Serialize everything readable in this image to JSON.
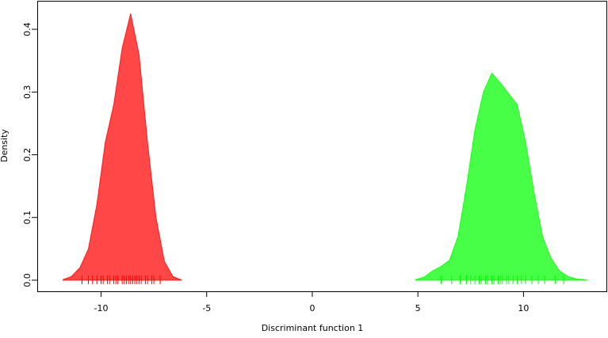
{
  "chart_data": {
    "type": "density",
    "x_label": "Discriminant function 1",
    "y_label": "Density",
    "xlim": [
      -13.02,
      14.0
    ],
    "ylim": [
      -0.0177,
      0.4467
    ],
    "xticks": [
      -10,
      -5,
      0,
      5,
      10
    ],
    "yticks": [
      {
        "value": 0,
        "label": "0.0"
      },
      0.1,
      0.2,
      0.3,
      0.4
    ],
    "series": [
      {
        "color": "#ff0000",
        "x": [
          -11.8,
          -11.4,
          -11.0,
          -10.6,
          -10.2,
          -9.8,
          -9.4,
          -9.0,
          -8.6,
          -8.2,
          -7.8,
          -7.4,
          -7.0,
          -6.6,
          -6.2
        ],
        "values": [
          0.001,
          0.006,
          0.02,
          0.05,
          0.12,
          0.22,
          0.28,
          0.37,
          0.425,
          0.36,
          0.22,
          0.1,
          0.03,
          0.006,
          0.0005
        ],
        "rug": [
          -10.9,
          -10.6,
          -10.4,
          -10.2,
          -10.0,
          -9.9,
          -9.7,
          -9.6,
          -9.4,
          -9.3,
          -9.2,
          -9.0,
          -8.9,
          -8.8,
          -8.7,
          -8.6,
          -8.5,
          -8.4,
          -8.3,
          -8.2,
          -8.1,
          -7.9,
          -7.8,
          -7.6,
          -7.5,
          -7.2
        ]
      },
      {
        "color": "#00ff00",
        "x": [
          4.9,
          5.3,
          5.7,
          6.1,
          6.5,
          6.9,
          7.3,
          7.7,
          8.1,
          8.5,
          8.9,
          9.3,
          9.7,
          10.1,
          10.5,
          10.9,
          11.3,
          11.7,
          12.1,
          12.5,
          13.0
        ],
        "values": [
          0.001,
          0.005,
          0.015,
          0.022,
          0.032,
          0.07,
          0.15,
          0.24,
          0.3,
          0.33,
          0.315,
          0.297,
          0.28,
          0.22,
          0.14,
          0.07,
          0.035,
          0.015,
          0.006,
          0.002,
          0.0005
        ],
        "rug": [
          6.1,
          6.6,
          7.0,
          7.3,
          7.5,
          7.7,
          7.9,
          8.0,
          8.2,
          8.3,
          8.5,
          8.6,
          8.8,
          8.9,
          9.0,
          9.2,
          9.3,
          9.5,
          9.7,
          9.9,
          10.1,
          10.4,
          10.7,
          11.0,
          11.5,
          11.9
        ]
      }
    ]
  }
}
